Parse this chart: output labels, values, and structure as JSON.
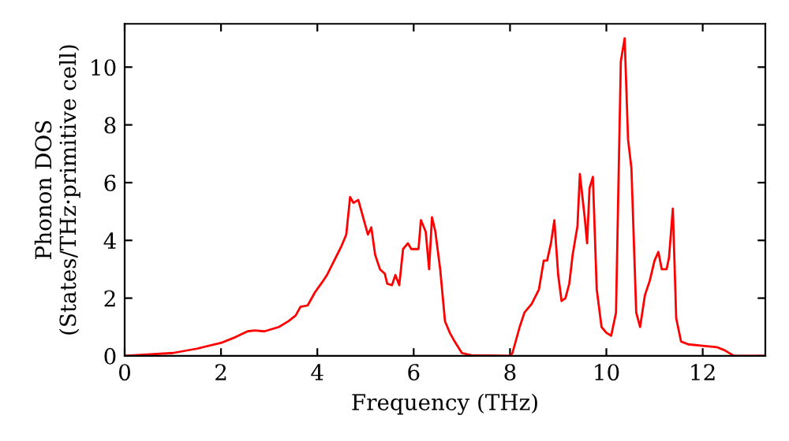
{
  "chart_data": {
    "type": "line",
    "xlabel": "Frequency (THz)",
    "ylabel": "Phonon DOS\n(States/THz·primitive cell)",
    "xlim": [
      0,
      13.3
    ],
    "ylim": [
      0,
      11.5
    ],
    "xticks": [
      0,
      2,
      4,
      6,
      8,
      10,
      12
    ],
    "yticks": [
      0,
      2,
      4,
      6,
      8,
      10
    ],
    "grid": false,
    "legend": false,
    "marker": "none",
    "line_style": "solid",
    "series": [
      {
        "color": "#ff0000",
        "x": [
          0,
          1,
          1.5,
          2,
          2.3,
          2.55,
          2.7,
          2.9,
          3.2,
          3.4,
          3.55,
          3.65,
          3.8,
          3.95,
          4.1,
          4.2,
          4.35,
          4.5,
          4.6,
          4.68,
          4.75,
          4.85,
          4.95,
          5.0,
          5.05,
          5.12,
          5.2,
          5.3,
          5.4,
          5.45,
          5.55,
          5.62,
          5.7,
          5.78,
          5.88,
          5.95,
          6.1,
          6.15,
          6.25,
          6.32,
          6.38,
          6.45,
          6.55,
          6.65,
          6.75,
          6.85,
          7.0,
          7.2,
          8.0,
          8.05,
          8.2,
          8.3,
          8.45,
          8.6,
          8.7,
          8.77,
          8.85,
          8.92,
          9.0,
          9.07,
          9.15,
          9.23,
          9.3,
          9.4,
          9.45,
          9.55,
          9.6,
          9.65,
          9.72,
          9.8,
          9.9,
          10.0,
          10.1,
          10.2,
          10.3,
          10.38,
          10.45,
          10.52,
          10.62,
          10.7,
          10.8,
          10.9,
          11.0,
          11.08,
          11.15,
          11.25,
          11.3,
          11.38,
          11.45,
          11.55,
          11.7,
          12.0,
          12.3,
          12.45,
          12.65,
          13.3
        ],
        "values": [
          0,
          0.1,
          0.25,
          0.45,
          0.65,
          0.85,
          0.88,
          0.85,
          1.0,
          1.2,
          1.4,
          1.7,
          1.75,
          2.2,
          2.55,
          2.8,
          3.3,
          3.8,
          4.2,
          5.5,
          5.3,
          5.4,
          4.8,
          4.5,
          4.2,
          4.45,
          3.5,
          3.0,
          2.85,
          2.5,
          2.45,
          2.8,
          2.45,
          3.7,
          3.9,
          3.7,
          3.7,
          4.7,
          4.3,
          3.0,
          4.8,
          4.3,
          3.0,
          1.2,
          0.8,
          0.5,
          0.1,
          0.02,
          0,
          0.1,
          1.0,
          1.5,
          1.8,
          2.3,
          3.3,
          3.3,
          3.9,
          4.7,
          2.8,
          1.9,
          2.0,
          2.5,
          3.5,
          4.5,
          6.3,
          4.8,
          3.9,
          5.8,
          6.2,
          2.3,
          1.0,
          0.8,
          0.7,
          1.5,
          10.2,
          11.0,
          7.5,
          6.5,
          1.5,
          1.0,
          2.1,
          2.6,
          3.3,
          3.6,
          3.0,
          3.0,
          3.4,
          5.1,
          1.3,
          0.5,
          0.4,
          0.35,
          0.3,
          0.2,
          0,
          0
        ]
      }
    ]
  }
}
